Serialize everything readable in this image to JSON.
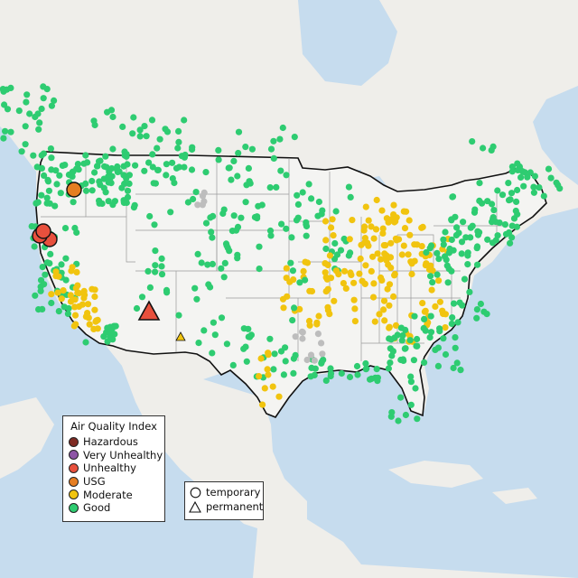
{
  "map": {
    "colors": {
      "ocean": "#c6dcee",
      "land": "#efeeea",
      "us_land": "#f4f4f2",
      "border": "#111111",
      "state_line": "#9a9a9a"
    }
  },
  "legend": {
    "title": "Air Quality Index",
    "items": [
      {
        "label": "Hazardous",
        "color": "#7e2a22"
      },
      {
        "label": "Very Unhealthy",
        "color": "#8e55a6"
      },
      {
        "label": "Unhealthy",
        "color": "#e8503d"
      },
      {
        "label": "USG",
        "color": "#e67e22"
      },
      {
        "label": "Moderate",
        "color": "#f1c40f"
      },
      {
        "label": "Good",
        "color": "#2ecc71"
      }
    ]
  },
  "shape_legend": {
    "items": [
      {
        "label": "temporary",
        "icon": "circle-icon"
      },
      {
        "label": "permanent",
        "icon": "triangle-icon"
      }
    ]
  }
}
